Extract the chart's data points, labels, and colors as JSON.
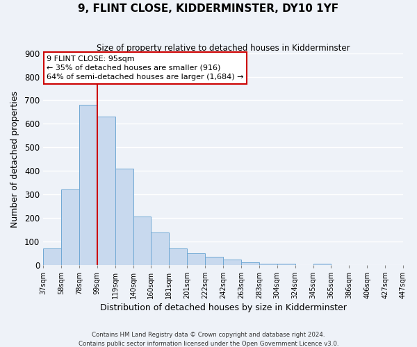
{
  "title": "9, FLINT CLOSE, KIDDERMINSTER, DY10 1YF",
  "subtitle": "Size of property relative to detached houses in Kidderminster",
  "xlabel": "Distribution of detached houses by size in Kidderminster",
  "ylabel": "Number of detached properties",
  "bar_heights": [
    70,
    320,
    680,
    630,
    410,
    205,
    138,
    68,
    48,
    35,
    22,
    10,
    5,
    5,
    0,
    5,
    0,
    0,
    0,
    0
  ],
  "bar_labels": [
    "37sqm",
    "58sqm",
    "78sqm",
    "99sqm",
    "119sqm",
    "140sqm",
    "160sqm",
    "181sqm",
    "201sqm",
    "222sqm",
    "242sqm",
    "263sqm",
    "283sqm",
    "304sqm",
    "324sqm",
    "345sqm",
    "365sqm",
    "386sqm",
    "406sqm",
    "427sqm",
    "447sqm"
  ],
  "bar_color": "#c8d9ee",
  "bar_edge_color": "#6fa8d4",
  "ylim": [
    0,
    900
  ],
  "yticks": [
    0,
    100,
    200,
    300,
    400,
    500,
    600,
    700,
    800,
    900
  ],
  "vline_color": "#cc0000",
  "annotation_title": "9 FLINT CLOSE: 95sqm",
  "annotation_line1": "← 35% of detached houses are smaller (916)",
  "annotation_line2": "64% of semi-detached houses are larger (1,684) →",
  "footer1": "Contains HM Land Registry data © Crown copyright and database right 2024.",
  "footer2": "Contains public sector information licensed under the Open Government Licence v3.0.",
  "background_color": "#eef2f8",
  "grid_color": "#ffffff",
  "annotation_box_facecolor": "#ffffff",
  "annotation_box_edgecolor": "#cc0000"
}
